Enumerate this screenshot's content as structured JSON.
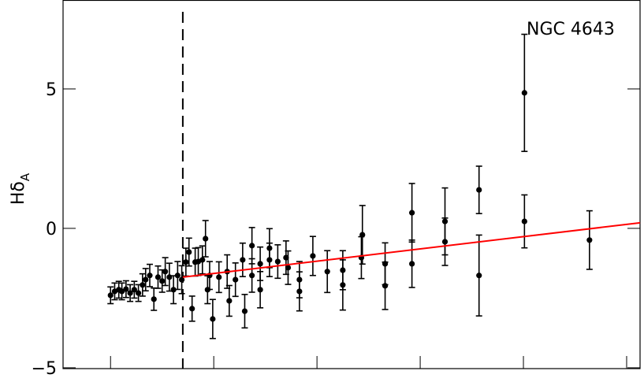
{
  "chart_data": {
    "type": "scatter",
    "annotation": "NGC 4643",
    "ylabel": "Hδ",
    "ylabel_subscript": "A",
    "xlim": [
      -0.46,
      5.13
    ],
    "xticks": [
      0,
      1,
      2,
      3,
      4,
      5
    ],
    "ylim": [
      -5.03,
      8.19
    ],
    "yticks": [
      {
        "value": -5,
        "label": "−5"
      },
      0,
      5
    ],
    "color": "#000000",
    "x": [
      0.0,
      0.04,
      0.08,
      0.11,
      0.15,
      0.19,
      0.23,
      0.27,
      0.31,
      0.34,
      0.38,
      0.42,
      0.46,
      0.5,
      0.53,
      0.57,
      0.61,
      0.65,
      0.69,
      0.73,
      0.76,
      0.79,
      0.82,
      0.85,
      0.89,
      0.92,
      0.94,
      0.96,
      0.99,
      1.05,
      1.13,
      1.15,
      1.21,
      1.28,
      1.3,
      1.37,
      1.37,
      1.45,
      1.45,
      1.54,
      1.54,
      1.62,
      1.7,
      1.72,
      1.83,
      1.83,
      1.96,
      2.1,
      2.25,
      2.25,
      2.44,
      2.43,
      2.66,
      2.66,
      2.92,
      2.92,
      3.24,
      3.24,
      3.57,
      3.57,
      4.01,
      4.01,
      4.64
    ],
    "y": [
      -2.4,
      -2.26,
      -2.2,
      -2.26,
      -2.18,
      -2.32,
      -2.2,
      -2.32,
      -2.03,
      -1.84,
      -1.69,
      -2.54,
      -1.75,
      -1.89,
      -1.55,
      -1.75,
      -2.2,
      -1.69,
      -1.84,
      -1.21,
      -0.85,
      -2.88,
      -1.21,
      -1.19,
      -1.13,
      -0.37,
      -2.2,
      -1.69,
      -3.25,
      -1.75,
      -1.55,
      -2.6,
      -1.84,
      -1.13,
      -2.97,
      -0.62,
      -1.69,
      -2.2,
      -1.27,
      -0.71,
      -1.13,
      -1.19,
      -1.05,
      -1.41,
      -1.84,
      -2.26,
      -0.99,
      -1.55,
      -1.5,
      -2.03,
      -0.23,
      -1.05,
      -1.27,
      -2.06,
      0.56,
      -1.27,
      0.25,
      -0.48,
      1.38,
      -1.69,
      4.86,
      0.25,
      -0.42
    ],
    "yerr": [
      0.3,
      0.3,
      0.3,
      0.3,
      0.3,
      0.3,
      0.3,
      0.3,
      0.4,
      0.4,
      0.4,
      0.4,
      0.4,
      0.4,
      0.5,
      0.5,
      0.5,
      0.5,
      0.5,
      0.5,
      0.5,
      0.45,
      0.5,
      0.5,
      0.5,
      0.65,
      0.5,
      0.5,
      0.7,
      0.55,
      0.6,
      0.55,
      0.6,
      0.6,
      0.6,
      0.65,
      0.6,
      0.65,
      0.6,
      0.7,
      0.6,
      0.6,
      0.6,
      0.6,
      0.65,
      0.7,
      0.7,
      0.75,
      0.7,
      0.9,
      1.05,
      0.75,
      0.75,
      0.85,
      1.05,
      0.85,
      1.2,
      0.85,
      0.85,
      1.45,
      2.1,
      0.95,
      1.05
    ],
    "vline": 0.7,
    "fit": {
      "x": [
        0.7,
        5.13
      ],
      "y": [
        -1.75,
        0.2
      ],
      "color": "#ff0000"
    }
  }
}
